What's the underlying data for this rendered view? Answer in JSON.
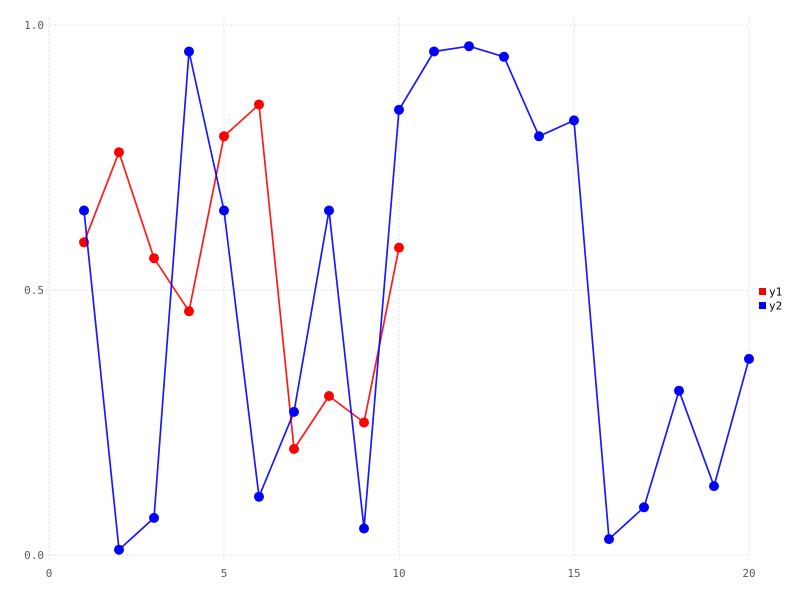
{
  "chart_data": {
    "type": "line",
    "title": "",
    "xlabel": "",
    "ylabel": "",
    "xlim": [
      0,
      20
    ],
    "ylim": [
      0.0,
      1.0
    ],
    "xticks": [
      0,
      5,
      10,
      15,
      20
    ],
    "xtick_labels": [
      "0",
      "5",
      "10",
      "15",
      "20"
    ],
    "yticks": [
      0.0,
      0.5,
      1.0
    ],
    "ytick_labels": [
      "0.0",
      "0.5",
      "1.0"
    ],
    "grid": true,
    "grid_style": "dotted",
    "legend_position": "right-middle",
    "marker": "circle",
    "series": [
      {
        "name": "y1",
        "color": "#ff0000",
        "x": [
          1,
          2,
          3,
          4,
          5,
          6,
          7,
          8,
          9,
          10
        ],
        "values": [
          0.59,
          0.76,
          0.56,
          0.46,
          0.79,
          0.85,
          0.2,
          0.3,
          0.25,
          0.58
        ]
      },
      {
        "name": "y2",
        "color": "#0000ff",
        "x": [
          1,
          2,
          3,
          4,
          5,
          6,
          7,
          8,
          9,
          10,
          11,
          12,
          13,
          14,
          15,
          16,
          17,
          18,
          19,
          20
        ],
        "values": [
          0.65,
          0.01,
          0.07,
          0.95,
          0.65,
          0.11,
          0.27,
          0.65,
          0.05,
          0.84,
          0.95,
          0.96,
          0.94,
          0.79,
          0.82,
          0.03,
          0.09,
          0.31,
          0.13,
          0.37
        ]
      }
    ]
  },
  "colors": {
    "background": "#ffffff",
    "grid": "#d8d8e2",
    "tick_label": "#5a5a62",
    "legend_text": "#000000"
  }
}
